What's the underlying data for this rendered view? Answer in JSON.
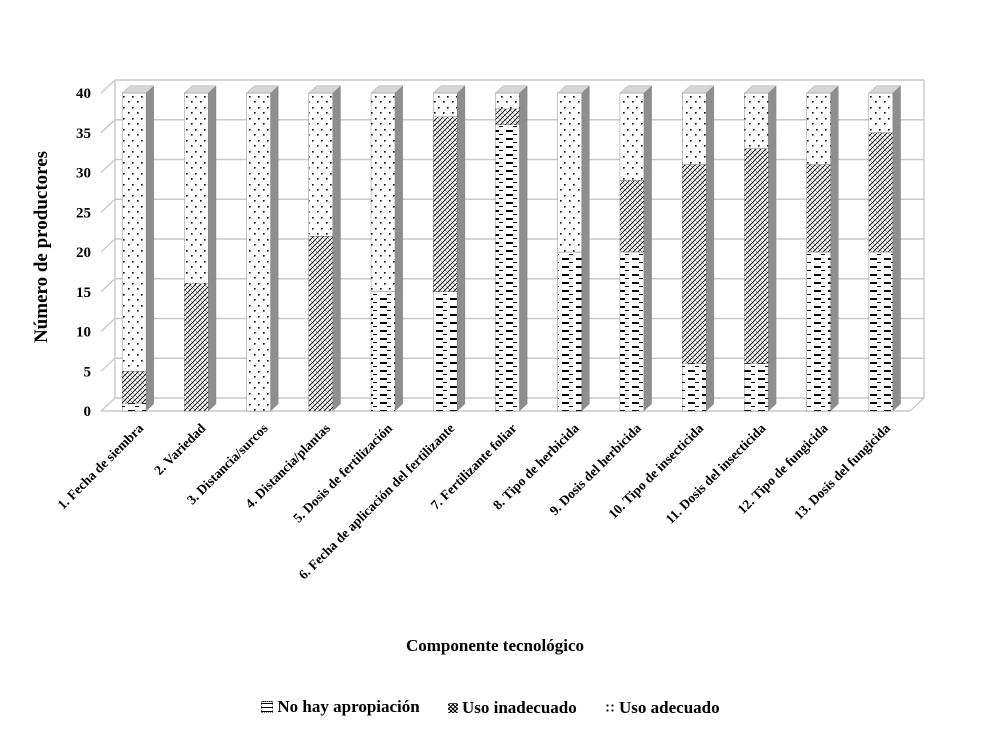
{
  "chart_data": {
    "type": "bar",
    "stacked": true,
    "three_d": true,
    "title": "",
    "xlabel": "Componente tecnológico",
    "ylabel": "Número de productores",
    "ylim": [
      0,
      40
    ],
    "yticks": [
      0,
      5,
      10,
      15,
      20,
      25,
      30,
      35,
      40
    ],
    "grid": true,
    "legend_position": "bottom",
    "categories": [
      "1. Fecha de siembra",
      "2. Variedad",
      "3. Distancia/surcos",
      "4. Distancia/plantas",
      "5. Dosis de fertilización",
      "6. Fecha de aplicación del fertilizante",
      "7. Fertilizante foliar",
      "8. Tipo de herbicida",
      "9. Dosis del herbicida",
      "10. Tipo de insecticida",
      "11. Dosis del insecticida",
      "12. Tipo de fungicida",
      "13. Dosis del fungicida"
    ],
    "series": [
      {
        "name": "No hay apropiación",
        "pattern": "dashes",
        "values": [
          1,
          0,
          0,
          0,
          15,
          15,
          36,
          20,
          20,
          6,
          6,
          20,
          20
        ]
      },
      {
        "name": "Uso inadecuado",
        "pattern": "crosshatch",
        "values": [
          4,
          16,
          0,
          22,
          0,
          22,
          2,
          0,
          9,
          25,
          27,
          11,
          15
        ]
      },
      {
        "name": "Uso adecuado",
        "pattern": "dots",
        "values": [
          35,
          24,
          40,
          18,
          25,
          3,
          2,
          20,
          11,
          9,
          7,
          9,
          5
        ]
      }
    ]
  }
}
